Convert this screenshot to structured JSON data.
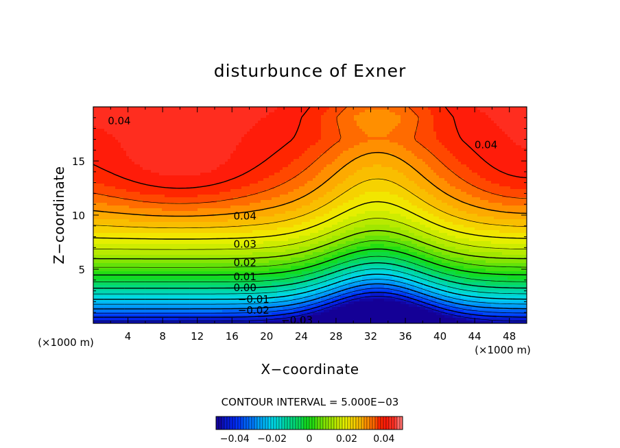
{
  "chart_data": {
    "type": "heatmap",
    "title": "disturbunce of Exner",
    "xlabel": "X−coordinate",
    "ylabel": "Z−coordinate",
    "x_unit_left": "(×1000 m)",
    "x_unit_right": "(×1000 m)",
    "xlim": [
      0,
      50
    ],
    "ylim": [
      0,
      20
    ],
    "x_ticks": [
      4,
      8,
      12,
      16,
      20,
      24,
      28,
      32,
      36,
      40,
      44,
      48
    ],
    "y_ticks": [
      5,
      10,
      15
    ],
    "grid": false,
    "contour_interval_text": "CONTOUR INTERVAL = 5.000E−03",
    "contour_interval": 0.005,
    "contour_labels": [
      {
        "text": "0.04",
        "x": 3,
        "z": 18.7
      },
      {
        "text": "0.04",
        "x": 45.3,
        "z": 16.5
      },
      {
        "text": "0.04",
        "x": 17.5,
        "z": 9.9
      },
      {
        "text": "0.03",
        "x": 17.5,
        "z": 7.3
      },
      {
        "text": "0.02",
        "x": 17.5,
        "z": 5.6
      },
      {
        "text": "0.01",
        "x": 17.5,
        "z": 4.3
      },
      {
        "text": "0.00",
        "x": 17.5,
        "z": 3.3
      },
      {
        "text": "−0.01",
        "x": 18.5,
        "z": 2.2
      },
      {
        "text": "−0.02",
        "x": 18.5,
        "z": 1.2
      },
      {
        "text": "−0.03",
        "x": 23.5,
        "z": 0.3
      }
    ],
    "colorbar": {
      "range": [
        -0.05,
        0.05
      ],
      "tick_values": [
        -0.04,
        -0.02,
        0,
        0.02,
        0.04
      ],
      "tick_labels": [
        "−0.04",
        "−0.02",
        "0",
        "0.02",
        "0.04"
      ]
    }
  }
}
